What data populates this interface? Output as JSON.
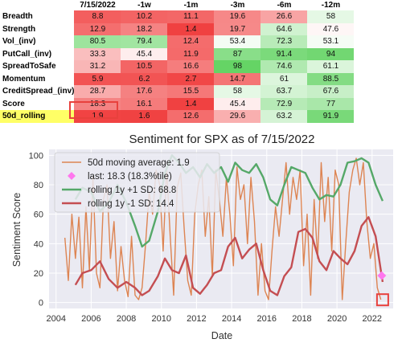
{
  "table": {
    "headers": [
      "",
      "7/15/2022",
      "-1w",
      "-1m",
      "-3m",
      "-6m",
      "-12m"
    ],
    "rows": [
      {
        "label": "Breadth",
        "values": [
          "8.8",
          "10.2",
          "11.1",
          "19.6",
          "26.6",
          "58"
        ],
        "nums": [
          8.8,
          10.2,
          11.1,
          19.6,
          26.6,
          58
        ]
      },
      {
        "label": "Strength",
        "values": [
          "12.9",
          "18.2",
          "1.4",
          "19.7",
          "64.6",
          "47.6"
        ],
        "nums": [
          12.9,
          18.2,
          1.4,
          19.7,
          64.6,
          47.6
        ]
      },
      {
        "label": "Vol_(inv)",
        "values": [
          "80.5",
          "79.4",
          "12.4",
          "53.4",
          "72.3",
          "53.1"
        ],
        "nums": [
          80.5,
          79.4,
          12.4,
          53.4,
          72.3,
          53.1
        ]
      },
      {
        "label": "PutCall_(inv)",
        "values": [
          "33.3",
          "45.4",
          "11.9",
          "87",
          "91.4",
          "94"
        ],
        "nums": [
          33.3,
          45.4,
          11.9,
          87,
          91.4,
          94
        ]
      },
      {
        "label": "SpreadToSafe",
        "values": [
          "31.2",
          "10.5",
          "16.6",
          "98",
          "74.6",
          "61.1"
        ],
        "nums": [
          31.2,
          10.5,
          16.6,
          98,
          74.6,
          61.1
        ]
      },
      {
        "label": "Momentum",
        "values": [
          "5.9",
          "6.2",
          "2.7",
          "14.7",
          "61",
          "88.5"
        ],
        "nums": [
          5.9,
          6.2,
          2.7,
          14.7,
          61,
          88.5
        ]
      },
      {
        "label": "CreditSpread_(inv)",
        "values": [
          "28.7",
          "17.6",
          "15.5",
          "58",
          "63.7",
          "67.6"
        ],
        "nums": [
          28.7,
          17.6,
          15.5,
          58,
          63.7,
          67.6
        ]
      },
      {
        "label": "Score",
        "values": [
          "18.3",
          "16.1",
          "1.4",
          "45.4",
          "72.9",
          "77"
        ],
        "nums": [
          18.3,
          16.1,
          1.4,
          45.4,
          72.9,
          77
        ]
      },
      {
        "label": "50d_rolling",
        "values": [
          "1.9",
          "1.6",
          "12.6",
          "29.6",
          "63.2",
          "91.9"
        ],
        "nums": [
          1.9,
          1.6,
          12.6,
          29.6,
          63.2,
          91.9
        ],
        "highlight": true
      }
    ]
  },
  "chart_data": {
    "type": "line",
    "title": "Sentiment for SPX as of 7/15/2022",
    "xlabel": "Date",
    "ylabel": "Sentiment Score",
    "xlim": [
      2003.6,
      2023.2
    ],
    "ylim": [
      -4,
      104
    ],
    "xticks": [
      2004,
      2006,
      2008,
      2010,
      2012,
      2014,
      2016,
      2018,
      2020,
      2022
    ],
    "yticks": [
      0,
      20,
      40,
      60,
      80,
      100
    ],
    "grid": true,
    "legend_position": "upper-left",
    "series": [
      {
        "name": "50d moving average: 1.9",
        "color": "#dd8452",
        "x": [
          2004.5,
          2004.7,
          2004.9,
          2005.1,
          2005.3,
          2005.5,
          2005.7,
          2005.9,
          2006.1,
          2006.3,
          2006.5,
          2006.7,
          2006.9,
          2007.1,
          2007.3,
          2007.5,
          2007.7,
          2007.9,
          2008.1,
          2008.3,
          2008.5,
          2008.7,
          2008.9,
          2009.1,
          2009.3,
          2009.5,
          2009.7,
          2009.9,
          2010.1,
          2010.3,
          2010.5,
          2010.7,
          2010.9,
          2011.1,
          2011.3,
          2011.5,
          2011.7,
          2011.9,
          2012.1,
          2012.3,
          2012.5,
          2012.7,
          2012.9,
          2013.1,
          2013.3,
          2013.5,
          2013.7,
          2013.9,
          2014.1,
          2014.3,
          2014.5,
          2014.7,
          2014.9,
          2015.1,
          2015.3,
          2015.5,
          2015.7,
          2015.9,
          2016.1,
          2016.3,
          2016.5,
          2016.7,
          2016.9,
          2017.1,
          2017.3,
          2017.5,
          2017.7,
          2017.9,
          2018.1,
          2018.3,
          2018.5,
          2018.7,
          2018.9,
          2019.1,
          2019.3,
          2019.5,
          2019.7,
          2019.9,
          2020.1,
          2020.3,
          2020.5,
          2020.7,
          2020.9,
          2021.1,
          2021.3,
          2021.5,
          2021.7,
          2021.9,
          2022.1,
          2022.3,
          2022.5
        ],
        "y": [
          44,
          15,
          60,
          30,
          58,
          10,
          65,
          22,
          85,
          20,
          10,
          70,
          80,
          30,
          55,
          8,
          38,
          15,
          4,
          45,
          5,
          2,
          10,
          40,
          75,
          60,
          90,
          80,
          35,
          92,
          45,
          5,
          78,
          88,
          50,
          15,
          5,
          60,
          80,
          90,
          45,
          72,
          18,
          90,
          70,
          45,
          85,
          60,
          25,
          92,
          70,
          80,
          40,
          85,
          55,
          5,
          40,
          8,
          2,
          35,
          65,
          45,
          70,
          95,
          60,
          85,
          70,
          90,
          25,
          60,
          5,
          70,
          30,
          95,
          55,
          85,
          35,
          90,
          80,
          2,
          40,
          75,
          90,
          98,
          80,
          95,
          55,
          30,
          40,
          10,
          2
        ]
      },
      {
        "name": "last: 18.3 (18.3%tile)",
        "color": "#ff77ee",
        "marker": "diamond",
        "x": [
          2022.55
        ],
        "y": [
          18.3
        ]
      },
      {
        "name": "rolling 1y +1 SD: 68.8",
        "color": "#55a868",
        "x": [
          2005.1,
          2005.5,
          2006.0,
          2006.5,
          2007.0,
          2007.5,
          2008.0,
          2008.5,
          2008.9,
          2009.3,
          2009.8,
          2010.2,
          2010.6,
          2011.0,
          2011.4,
          2011.8,
          2012.2,
          2012.6,
          2013.0,
          2013.4,
          2013.8,
          2014.2,
          2014.6,
          2015.0,
          2015.4,
          2015.8,
          2016.2,
          2016.6,
          2017.0,
          2017.4,
          2017.8,
          2018.2,
          2018.6,
          2019.0,
          2019.4,
          2019.8,
          2020.2,
          2020.6,
          2021.0,
          2021.4,
          2021.8,
          2022.2,
          2022.6
        ],
        "y": [
          70,
          78,
          75,
          62,
          68,
          80,
          68,
          52,
          38,
          42,
          62,
          88,
          100,
          95,
          88,
          92,
          85,
          94,
          88,
          92,
          82,
          95,
          90,
          88,
          94,
          85,
          70,
          66,
          80,
          92,
          90,
          88,
          78,
          70,
          73,
          72,
          80,
          95,
          96,
          98,
          95,
          80,
          69
        ]
      },
      {
        "name": "rolling 1y -1 SD: 14.4",
        "color": "#c44e52",
        "x": [
          2005.1,
          2005.5,
          2006.0,
          2006.5,
          2007.0,
          2007.5,
          2008.0,
          2008.5,
          2008.9,
          2009.3,
          2009.8,
          2010.2,
          2010.6,
          2011.0,
          2011.4,
          2011.8,
          2012.2,
          2012.6,
          2013.0,
          2013.4,
          2013.8,
          2014.2,
          2014.6,
          2015.0,
          2015.4,
          2015.8,
          2016.2,
          2016.6,
          2017.0,
          2017.4,
          2017.8,
          2018.2,
          2018.6,
          2019.0,
          2019.4,
          2019.8,
          2020.2,
          2020.6,
          2021.0,
          2021.4,
          2021.8,
          2022.2,
          2022.6
        ],
        "y": [
          12,
          20,
          22,
          28,
          16,
          10,
          14,
          10,
          5,
          8,
          18,
          30,
          22,
          20,
          32,
          10,
          6,
          12,
          20,
          22,
          38,
          44,
          30,
          36,
          40,
          22,
          8,
          5,
          18,
          24,
          48,
          50,
          44,
          28,
          22,
          35,
          30,
          26,
          35,
          52,
          58,
          45,
          14
        ]
      }
    ],
    "annotation": {
      "type": "box",
      "x": 2022.6,
      "y": 1.9,
      "color": "#e8413d"
    }
  }
}
